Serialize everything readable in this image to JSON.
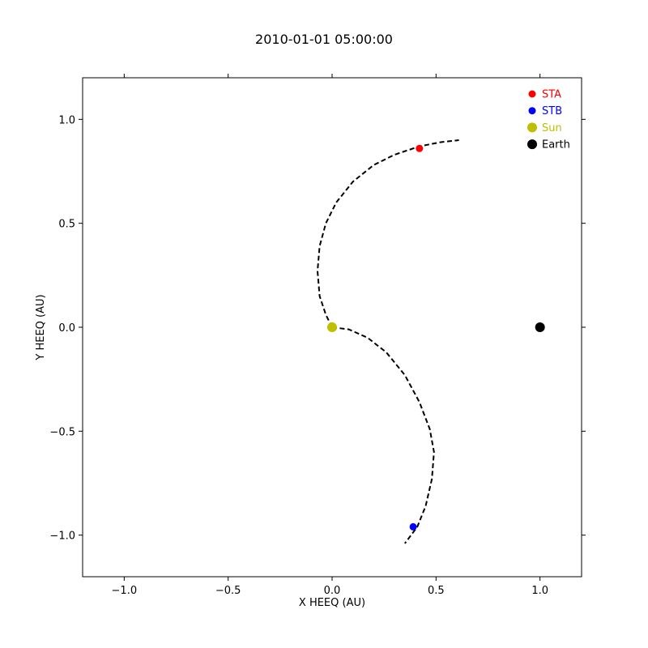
{
  "chart_data": {
    "type": "scatter",
    "title": "2010-01-01 05:00:00",
    "xlabel": "X HEEQ (AU)",
    "ylabel": "Y HEEQ (AU)",
    "xlim": [
      -1.2,
      1.2
    ],
    "ylim": [
      -1.2,
      1.2
    ],
    "grid": false,
    "legend_position": "top-right",
    "ticks": {
      "x": [
        {
          "value": -1.0,
          "label": "−1.0"
        },
        {
          "value": -0.5,
          "label": "−0.5"
        },
        {
          "value": 0.0,
          "label": "0.0"
        },
        {
          "value": 0.5,
          "label": "0.5"
        },
        {
          "value": 1.0,
          "label": "1.0"
        }
      ],
      "y": [
        {
          "value": -1.0,
          "label": "−1.0"
        },
        {
          "value": -0.5,
          "label": "−0.5"
        },
        {
          "value": 0.0,
          "label": "0.0"
        },
        {
          "value": 0.5,
          "label": "0.5"
        },
        {
          "value": 1.0,
          "label": "1.0"
        }
      ]
    },
    "series": [
      {
        "name": "STA",
        "color": "#ff0000",
        "marker": "small",
        "x": [
          0.42
        ],
        "y": [
          0.86
        ]
      },
      {
        "name": "STB",
        "color": "#0000ff",
        "marker": "small",
        "x": [
          0.39
        ],
        "y": [
          -0.96
        ]
      },
      {
        "name": "Sun",
        "color": "#bfbf00",
        "marker": "large",
        "x": [
          0.0
        ],
        "y": [
          0.0
        ]
      },
      {
        "name": "Earth",
        "color": "#000000",
        "marker": "large",
        "x": [
          1.0
        ],
        "y": [
          0.0
        ]
      }
    ],
    "lines": [
      {
        "style": "dashed",
        "color": "#000000",
        "x": [
          0.0,
          -0.03,
          -0.06,
          -0.07,
          -0.06,
          -0.03,
          0.02,
          0.1,
          0.2,
          0.3,
          0.42,
          0.52,
          0.61
        ],
        "y": [
          0.0,
          0.06,
          0.15,
          0.27,
          0.39,
          0.5,
          0.6,
          0.7,
          0.78,
          0.83,
          0.87,
          0.89,
          0.9
        ]
      },
      {
        "style": "dashed",
        "color": "#000000",
        "x": [
          0.0,
          0.08,
          0.17,
          0.26,
          0.35,
          0.42,
          0.47,
          0.49,
          0.48,
          0.45,
          0.41,
          0.35
        ],
        "y": [
          0.0,
          -0.01,
          -0.05,
          -0.12,
          -0.23,
          -0.36,
          -0.49,
          -0.6,
          -0.73,
          -0.86,
          -0.96,
          -1.04
        ]
      }
    ]
  }
}
